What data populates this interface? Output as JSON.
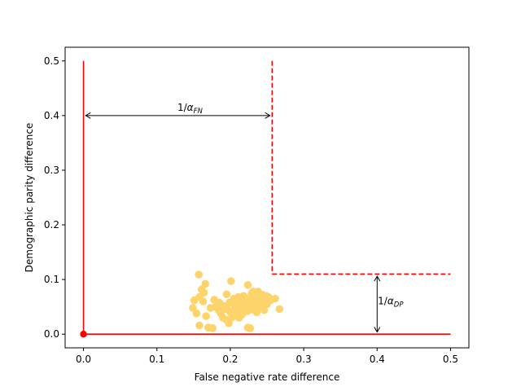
{
  "chart_data": {
    "type": "scatter",
    "xlabel": "False negative rate difference",
    "ylabel": "Demographic parity difference",
    "xlim": [
      -0.025,
      0.525
    ],
    "ylim": [
      -0.025,
      0.525
    ],
    "xticks": [
      "0.0",
      "0.1",
      "0.2",
      "0.3",
      "0.4",
      "0.5"
    ],
    "yticks": [
      "0.0",
      "0.1",
      "0.2",
      "0.3",
      "0.4",
      "0.5"
    ],
    "grid": false,
    "colors": {
      "points": "#fdd36b",
      "boundary": "#ff0000",
      "annotation": "#000000"
    },
    "solid_boundary": {
      "vertical": {
        "x": 0.0,
        "y": [
          0.0,
          0.5
        ]
      },
      "horizontal": {
        "y": 0.0,
        "x": [
          0.0,
          0.5
        ]
      }
    },
    "dashed_boundary": {
      "vertical": {
        "x": 0.257,
        "y": [
          0.11,
          0.5
        ]
      },
      "horizontal": {
        "y": 0.11,
        "x": [
          0.257,
          0.5
        ]
      }
    },
    "origin_point": {
      "x": 0.0,
      "y": 0.0
    },
    "annotations": [
      {
        "label": "1/α_FN",
        "orientation": "horizontal",
        "from": 0.003,
        "to": 0.254,
        "at": 0.4,
        "label_x": 0.128,
        "label_y": 0.409
      },
      {
        "label": "1/α_DP",
        "orientation": "vertical",
        "from": 0.004,
        "to": 0.106,
        "at": 0.4,
        "label_x": 0.401,
        "label_y": 0.055
      }
    ],
    "points": [
      {
        "x": 0.157,
        "y": 0.109
      },
      {
        "x": 0.201,
        "y": 0.097
      },
      {
        "x": 0.166,
        "y": 0.092
      },
      {
        "x": 0.224,
        "y": 0.09
      },
      {
        "x": 0.161,
        "y": 0.082
      },
      {
        "x": 0.164,
        "y": 0.076
      },
      {
        "x": 0.195,
        "y": 0.073
      },
      {
        "x": 0.158,
        "y": 0.068
      },
      {
        "x": 0.151,
        "y": 0.062
      },
      {
        "x": 0.163,
        "y": 0.06
      },
      {
        "x": 0.178,
        "y": 0.063
      },
      {
        "x": 0.185,
        "y": 0.058
      },
      {
        "x": 0.149,
        "y": 0.048
      },
      {
        "x": 0.154,
        "y": 0.038
      },
      {
        "x": 0.167,
        "y": 0.033
      },
      {
        "x": 0.173,
        "y": 0.048
      },
      {
        "x": 0.18,
        "y": 0.05
      },
      {
        "x": 0.19,
        "y": 0.052
      },
      {
        "x": 0.196,
        "y": 0.045
      },
      {
        "x": 0.2,
        "y": 0.04
      },
      {
        "x": 0.205,
        "y": 0.055
      },
      {
        "x": 0.21,
        "y": 0.048
      },
      {
        "x": 0.214,
        "y": 0.062
      },
      {
        "x": 0.218,
        "y": 0.07
      },
      {
        "x": 0.222,
        "y": 0.058
      },
      {
        "x": 0.226,
        "y": 0.066
      },
      {
        "x": 0.229,
        "y": 0.074
      },
      {
        "x": 0.232,
        "y": 0.06
      },
      {
        "x": 0.235,
        "y": 0.052
      },
      {
        "x": 0.238,
        "y": 0.078
      },
      {
        "x": 0.241,
        "y": 0.066
      },
      {
        "x": 0.244,
        "y": 0.072
      },
      {
        "x": 0.247,
        "y": 0.06
      },
      {
        "x": 0.25,
        "y": 0.055
      },
      {
        "x": 0.252,
        "y": 0.068
      },
      {
        "x": 0.22,
        "y": 0.05
      },
      {
        "x": 0.215,
        "y": 0.04
      },
      {
        "x": 0.208,
        "y": 0.035
      },
      {
        "x": 0.202,
        "y": 0.03
      },
      {
        "x": 0.195,
        "y": 0.026
      },
      {
        "x": 0.19,
        "y": 0.03
      },
      {
        "x": 0.198,
        "y": 0.02
      },
      {
        "x": 0.158,
        "y": 0.016
      },
      {
        "x": 0.17,
        "y": 0.012
      },
      {
        "x": 0.176,
        "y": 0.011
      },
      {
        "x": 0.224,
        "y": 0.012
      },
      {
        "x": 0.227,
        "y": 0.011
      },
      {
        "x": 0.212,
        "y": 0.03
      },
      {
        "x": 0.23,
        "y": 0.045
      },
      {
        "x": 0.236,
        "y": 0.04
      },
      {
        "x": 0.24,
        "y": 0.048
      },
      {
        "x": 0.244,
        "y": 0.05
      },
      {
        "x": 0.255,
        "y": 0.062
      },
      {
        "x": 0.261,
        "y": 0.065
      },
      {
        "x": 0.267,
        "y": 0.046
      },
      {
        "x": 0.205,
        "y": 0.065
      },
      {
        "x": 0.212,
        "y": 0.058
      },
      {
        "x": 0.218,
        "y": 0.045
      },
      {
        "x": 0.226,
        "y": 0.05
      },
      {
        "x": 0.233,
        "y": 0.068
      },
      {
        "x": 0.239,
        "y": 0.058
      },
      {
        "x": 0.187,
        "y": 0.038
      },
      {
        "x": 0.193,
        "y": 0.048
      },
      {
        "x": 0.203,
        "y": 0.042
      },
      {
        "x": 0.209,
        "y": 0.052
      },
      {
        "x": 0.216,
        "y": 0.036
      },
      {
        "x": 0.221,
        "y": 0.064
      },
      {
        "x": 0.228,
        "y": 0.054
      },
      {
        "x": 0.234,
        "y": 0.046
      },
      {
        "x": 0.243,
        "y": 0.062
      },
      {
        "x": 0.249,
        "y": 0.07
      },
      {
        "x": 0.231,
        "y": 0.078
      },
      {
        "x": 0.237,
        "y": 0.072
      },
      {
        "x": 0.223,
        "y": 0.042
      },
      {
        "x": 0.199,
        "y": 0.058
      },
      {
        "x": 0.184,
        "y": 0.044
      },
      {
        "x": 0.211,
        "y": 0.068
      },
      {
        "x": 0.246,
        "y": 0.044
      }
    ]
  }
}
